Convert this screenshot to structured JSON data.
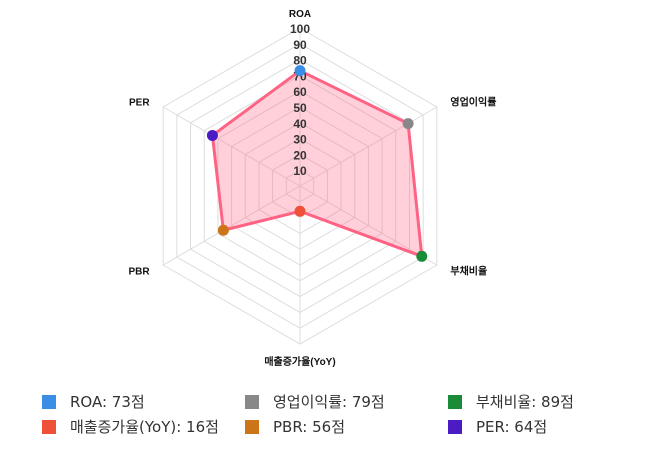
{
  "chart_data": {
    "type": "radar",
    "categories": [
      "ROA",
      "영업이익률",
      "부채비율",
      "매출증가율(YoY)",
      "PBR",
      "PER"
    ],
    "values": [
      73,
      79,
      89,
      16,
      56,
      64
    ],
    "rlim": [
      0,
      100
    ],
    "ticks": [
      "10",
      "20",
      "30",
      "40",
      "50",
      "60",
      "70",
      "80",
      "90",
      "100"
    ],
    "grid": true,
    "line_color": "#ff6384",
    "fill_color": "rgba(255,99,132,0.3)",
    "point_colors": [
      "#3a8ee6",
      "#888888",
      "#1a8c37",
      "#ef5138",
      "#cc7418",
      "#4b1cc4"
    ],
    "legend_position": "bottom",
    "legend": [
      "ROA: 73점",
      "영업이익률: 79점",
      "부채비율: 89점",
      "매출증가율(YoY): 16점",
      "PBR: 56점",
      "PER: 64점"
    ]
  }
}
